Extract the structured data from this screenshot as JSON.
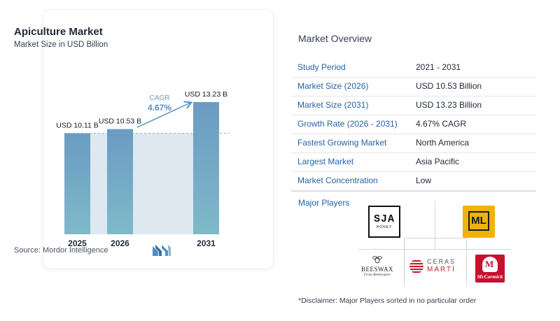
{
  "chart_card": {
    "title": "Apiculture Market",
    "subtitle": "Market Size in USD Billion",
    "source": "Source:  Mordor Intelligence"
  },
  "chart_data": {
    "type": "bar",
    "title": "Apiculture Market",
    "subtitle": "Market Size in USD Billion",
    "categories": [
      "2025",
      "2026",
      "2031"
    ],
    "values": [
      10.11,
      10.53,
      13.23
    ],
    "value_labels": [
      "USD 10.11 B",
      "USD 10.53 B",
      "USD 13.23 B"
    ],
    "cagr_label": "CAGR",
    "cagr_value": "4.67%",
    "colors": {
      "bar": "#6b9bc3",
      "bar_bottom": "#7fb9c9",
      "band": "#dde8f1",
      "arrow": "#4f8fc6"
    }
  },
  "overview": {
    "title": "Market Overview",
    "rows": [
      {
        "key": "Study Period",
        "value": "2021 - 2031"
      },
      {
        "key": "Market Size (2026)",
        "value": "USD 10.53 Billion"
      },
      {
        "key": "Market Size (2031)",
        "value": "USD 13.23 Billion"
      },
      {
        "key": "Growth Rate (2026 - 2031)",
        "value": "4.67% CAGR"
      },
      {
        "key": "Fastest Growing Market",
        "value": "North America"
      },
      {
        "key": "Largest Market",
        "value": "Asia Pacific"
      },
      {
        "key": "Market Concentration",
        "value": "Low"
      }
    ]
  },
  "players": {
    "title": "Major Players",
    "logos": {
      "sja": {
        "text": "SJA",
        "sub": "HONEY"
      },
      "ml": {
        "text": "ML"
      },
      "beeswax": {
        "text": "BEESWAX",
        "sub": "From Beekeepers"
      },
      "ceras": {
        "line1": "CERAS",
        "line2": "MARTÍ"
      },
      "mccormick": {
        "text": "McCormick"
      }
    }
  },
  "disclaimer": "*Disclaimer: Major Players sorted in no particular order"
}
